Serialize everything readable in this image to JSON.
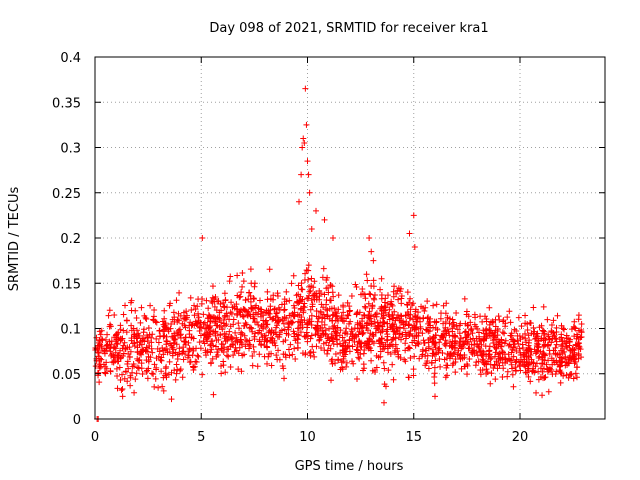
{
  "chart_data": {
    "type": "scatter",
    "title": "Day 098 of 2021, SRMTID for receiver kra1",
    "xlabel": "GPS time / hours",
    "ylabel": "SRMTID / TECUs",
    "xlim": [
      0,
      24
    ],
    "ylim": [
      0,
      0.4
    ],
    "xticks": [
      0,
      5,
      10,
      15,
      20
    ],
    "xtick_labels": [
      "0",
      "5",
      "10",
      "15",
      "20"
    ],
    "yticks": [
      0,
      0.05,
      0.1,
      0.15,
      0.2,
      0.25,
      0.3,
      0.35,
      0.4
    ],
    "ytick_labels": [
      "0",
      "0.05",
      "0.1",
      "0.15",
      "0.2",
      "0.25",
      "0.3",
      "0.35",
      "0.4"
    ],
    "grid": true,
    "marker": "+",
    "color": "#ff0000",
    "series": [
      {
        "name": "kra1",
        "samples_approx": 2200,
        "x_range": [
          0,
          22.9
        ],
        "baseline_envelope": [
          {
            "x": 0.0,
            "mean": 0.075,
            "spread": 0.025
          },
          {
            "x": 1.0,
            "mean": 0.075,
            "spread": 0.03
          },
          {
            "x": 2.0,
            "mean": 0.08,
            "spread": 0.035
          },
          {
            "x": 3.0,
            "mean": 0.08,
            "spread": 0.035
          },
          {
            "x": 4.0,
            "mean": 0.09,
            "spread": 0.035
          },
          {
            "x": 5.0,
            "mean": 0.095,
            "spread": 0.035
          },
          {
            "x": 6.0,
            "mean": 0.095,
            "spread": 0.04
          },
          {
            "x": 7.0,
            "mean": 0.11,
            "spread": 0.04
          },
          {
            "x": 8.0,
            "mean": 0.1,
            "spread": 0.035
          },
          {
            "x": 9.0,
            "mean": 0.1,
            "spread": 0.04
          },
          {
            "x": 10.0,
            "mean": 0.12,
            "spread": 0.045
          },
          {
            "x": 11.0,
            "mean": 0.1,
            "spread": 0.04
          },
          {
            "x": 12.0,
            "mean": 0.09,
            "spread": 0.035
          },
          {
            "x": 13.0,
            "mean": 0.1,
            "spread": 0.04
          },
          {
            "x": 14.0,
            "mean": 0.1,
            "spread": 0.04
          },
          {
            "x": 15.0,
            "mean": 0.095,
            "spread": 0.035
          },
          {
            "x": 16.0,
            "mean": 0.085,
            "spread": 0.03
          },
          {
            "x": 17.0,
            "mean": 0.08,
            "spread": 0.03
          },
          {
            "x": 18.0,
            "mean": 0.085,
            "spread": 0.03
          },
          {
            "x": 19.0,
            "mean": 0.08,
            "spread": 0.03
          },
          {
            "x": 20.0,
            "mean": 0.075,
            "spread": 0.03
          },
          {
            "x": 21.0,
            "mean": 0.075,
            "spread": 0.03
          },
          {
            "x": 22.0,
            "mean": 0.075,
            "spread": 0.03
          },
          {
            "x": 22.9,
            "mean": 0.08,
            "spread": 0.025
          }
        ],
        "notable_points": [
          {
            "x": 0.1,
            "y": 0.0
          },
          {
            "x": 0.15,
            "y": 0.0
          },
          {
            "x": 9.6,
            "y": 0.24
          },
          {
            "x": 9.7,
            "y": 0.27
          },
          {
            "x": 9.75,
            "y": 0.3
          },
          {
            "x": 9.8,
            "y": 0.31
          },
          {
            "x": 9.85,
            "y": 0.305
          },
          {
            "x": 9.9,
            "y": 0.365
          },
          {
            "x": 9.95,
            "y": 0.325
          },
          {
            "x": 10.0,
            "y": 0.285
          },
          {
            "x": 10.05,
            "y": 0.27
          },
          {
            "x": 10.1,
            "y": 0.25
          },
          {
            "x": 10.2,
            "y": 0.21
          },
          {
            "x": 10.4,
            "y": 0.23
          },
          {
            "x": 10.8,
            "y": 0.22
          },
          {
            "x": 11.2,
            "y": 0.2
          },
          {
            "x": 5.05,
            "y": 0.2
          },
          {
            "x": 12.9,
            "y": 0.2
          },
          {
            "x": 13.0,
            "y": 0.185
          },
          {
            "x": 13.1,
            "y": 0.175
          },
          {
            "x": 14.8,
            "y": 0.205
          },
          {
            "x": 15.0,
            "y": 0.225
          },
          {
            "x": 15.05,
            "y": 0.19
          },
          {
            "x": 1.3,
            "y": 0.025
          },
          {
            "x": 3.6,
            "y": 0.022
          },
          {
            "x": 13.6,
            "y": 0.018
          },
          {
            "x": 16.0,
            "y": 0.025
          },
          {
            "x": 22.9,
            "y": 0.105
          }
        ]
      }
    ]
  }
}
